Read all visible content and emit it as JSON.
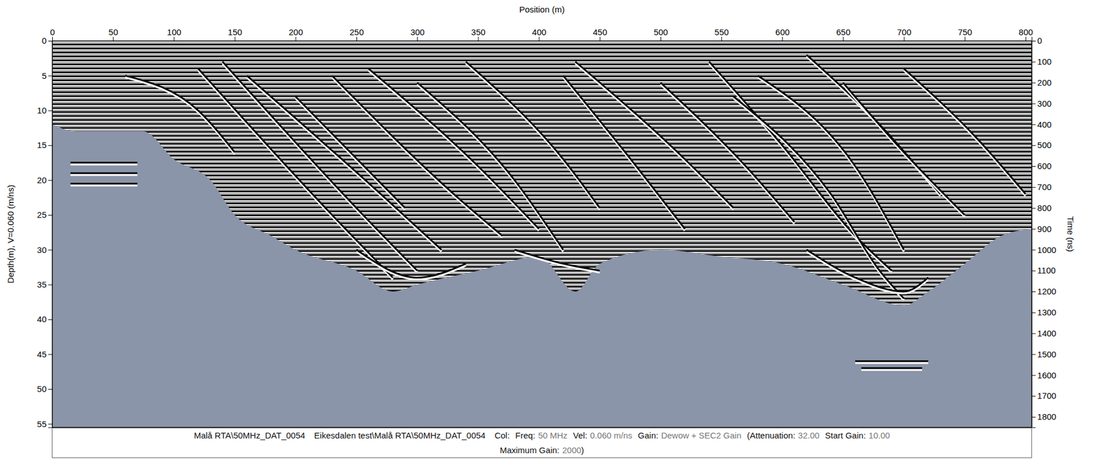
{
  "chart_data": {
    "type": "radargram",
    "xlabel": "Position (m)",
    "ylabel": "Depth(m), V=0.060 (m/ns)",
    "y2label": "Time (ns)",
    "xlim": [
      0,
      805
    ],
    "xticks": [
      0,
      50,
      100,
      150,
      200,
      250,
      300,
      350,
      400,
      450,
      500,
      550,
      600,
      650,
      700,
      750,
      800
    ],
    "ylim": [
      0,
      55.5
    ],
    "yticks": [
      0,
      5,
      10,
      15,
      20,
      25,
      30,
      35,
      40,
      45,
      50,
      55
    ],
    "y2lim": [
      0,
      1850
    ],
    "y2ticks": [
      0,
      100,
      200,
      300,
      400,
      500,
      600,
      700,
      800,
      900,
      1000,
      1100,
      1200,
      1300,
      1400,
      1500,
      1600,
      1700,
      1800
    ],
    "area": {
      "x": [
        0,
        20,
        50,
        75,
        100,
        130,
        150,
        180,
        200,
        250,
        280,
        300,
        350,
        400,
        430,
        450,
        500,
        550,
        600,
        650,
        700,
        720,
        750,
        780,
        805
      ],
      "values": [
        12,
        13,
        13,
        13,
        17,
        20,
        25,
        28,
        30,
        33,
        36,
        35,
        33,
        31,
        36,
        32,
        30,
        31,
        32,
        35,
        38,
        36,
        32,
        28,
        27
      ]
    },
    "series": [
      {
        "x": [
          15,
          70
        ],
        "values": [
          17.5,
          17.5
        ]
      },
      {
        "x": [
          15,
          70
        ],
        "values": [
          19,
          19
        ]
      },
      {
        "x": [
          15,
          70
        ],
        "values": [
          20.5,
          20.5
        ]
      },
      {
        "x": [
          120,
          230,
          280
        ],
        "values": [
          4,
          25,
          34
        ]
      },
      {
        "x": [
          140,
          250,
          300
        ],
        "values": [
          3,
          24,
          33
        ]
      },
      {
        "x": [
          160,
          270,
          320
        ],
        "values": [
          5,
          22,
          30
        ]
      },
      {
        "x": [
          200,
          290
        ],
        "values": [
          8,
          24
        ]
      },
      {
        "x": [
          230,
          330,
          370
        ],
        "values": [
          5,
          22,
          28
        ]
      },
      {
        "x": [
          260,
          350,
          400
        ],
        "values": [
          4,
          18,
          27
        ]
      },
      {
        "x": [
          300,
          380,
          420
        ],
        "values": [
          6,
          20,
          30
        ]
      },
      {
        "x": [
          340,
          420,
          450
        ],
        "values": [
          3,
          17,
          24
        ]
      },
      {
        "x": [
          420,
          480,
          520
        ],
        "values": [
          5,
          18,
          27
        ]
      },
      {
        "x": [
          430,
          520,
          560
        ],
        "values": [
          3,
          17,
          24
        ]
      },
      {
        "x": [
          500,
          570,
          610
        ],
        "values": [
          6,
          18,
          26
        ]
      },
      {
        "x": [
          540,
          600,
          660,
          690
        ],
        "values": [
          3,
          15,
          28,
          33
        ]
      },
      {
        "x": [
          560,
          640,
          680,
          700
        ],
        "values": [
          8,
          22,
          33,
          37
        ]
      },
      {
        "x": [
          580,
          660,
          700
        ],
        "values": [
          5,
          18,
          30
        ]
      },
      {
        "x": [
          620,
          680,
          730
        ],
        "values": [
          2,
          12,
          22
        ]
      },
      {
        "x": [
          650,
          700,
          750
        ],
        "values": [
          6,
          16,
          25
        ]
      },
      {
        "x": [
          700,
          760,
          800
        ],
        "values": [
          4,
          14,
          22
        ]
      },
      {
        "x": [
          60,
          120,
          150
        ],
        "values": [
          5,
          10,
          16
        ]
      },
      {
        "x": [
          620,
          660,
          700,
          720
        ],
        "values": [
          30,
          34,
          36,
          34
        ]
      },
      {
        "x": [
          380,
          420,
          450
        ],
        "values": [
          30,
          32,
          33
        ]
      },
      {
        "x": [
          250,
          300,
          340
        ],
        "values": [
          30,
          34,
          32
        ]
      },
      {
        "x": [
          660,
          720
        ],
        "values": [
          46,
          46
        ]
      },
      {
        "x": [
          665,
          715
        ],
        "values": [
          47,
          47
        ]
      }
    ],
    "footer": [
      [
        {
          "label": "Malå RTA\\50MHz_DAT_0054"
        },
        {
          "label": "Eikesdalen test\\Malå RTA\\50MHz_DAT_0054"
        },
        {
          "label": "Col:"
        },
        {
          "label": "Freq:",
          "value": "50 MHz"
        },
        {
          "label": "Vel:",
          "value": "0.060 m/ns"
        },
        {
          "label": "Gain:",
          "value": "Dewow + SEC2 Gain"
        },
        {
          "label": "(Attenuation:",
          "value": "32.00"
        },
        {
          "label": "Start Gain:",
          "value": "10.00"
        }
      ],
      [
        {
          "label": "Maximum Gain:",
          "value": "2000"
        },
        {
          "label": ")"
        }
      ]
    ]
  }
}
